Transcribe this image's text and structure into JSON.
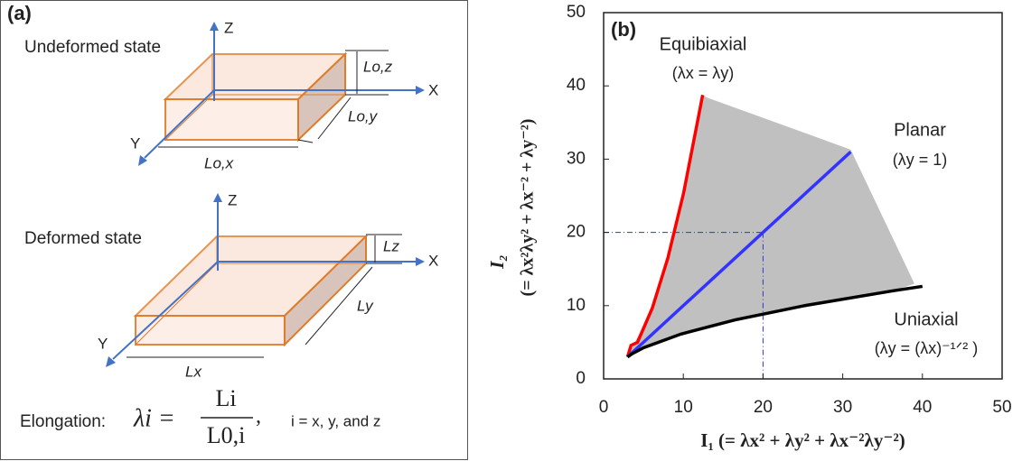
{
  "panel_a": {
    "panel_label": "(a)",
    "undeformed": {
      "title": "Undeformed state",
      "z": "Z",
      "x": "X",
      "y": "Y",
      "lz": "Lo,z",
      "ly": "Lo,y",
      "lx": "Lo,x"
    },
    "deformed": {
      "title": "Deformed state",
      "z": "Z",
      "x": "X",
      "y": "Y",
      "lz": "Lz",
      "ly": "Ly",
      "lx": "Lx"
    },
    "elongation_label": "Elongation:",
    "equation_lhs": "λi =",
    "numerator": "Li",
    "denominator": "L0,i",
    "separator": ",",
    "index_note": "i = x, y, and z"
  },
  "chart_data": {
    "type": "line",
    "panel_label": "(b)",
    "xlabel": "I₁ (= λx² + λy² + λx⁻²λy⁻²)",
    "ylabel_symbol": "I₂",
    "ylabel": "(= λx²λy² + λx⁻² + λy⁻²)",
    "xlim": [
      0,
      50
    ],
    "ylim": [
      0,
      50
    ],
    "xticks": [
      0,
      10,
      20,
      30,
      40,
      50
    ],
    "yticks": [
      0,
      10,
      20,
      30,
      40,
      50
    ],
    "series": [
      {
        "name": "Equibiaxial",
        "note": "(λx = λy)",
        "color": "#ff0000",
        "x": [
          3,
          3.44,
          4.25,
          6.11,
          8.06,
          10.04,
          12.43
        ],
        "values": [
          3,
          4.58,
          5,
          9.67,
          16.5,
          25.4,
          38.76
        ]
      },
      {
        "name": "Planar",
        "note": "(λy = 1)",
        "color": "#3333ff",
        "x": [
          3,
          31
        ],
        "values": [
          3,
          31
        ]
      },
      {
        "name": "Uniaxial",
        "note": "(λy = (λx)⁻¹ᐟ² )",
        "color": "#000000",
        "x": [
          3,
          3.58,
          5,
          9.67,
          16.5,
          25.4,
          36.33,
          40.0
        ],
        "values": [
          3,
          3.44,
          4.25,
          6.11,
          8.06,
          10.04,
          12.03,
          12.63
        ]
      }
    ],
    "region": {
      "color": "#c0c0c0",
      "x": [
        3,
        6.11,
        8.06,
        10.04,
        12.43,
        13,
        31,
        39,
        36.33,
        25.4,
        16.5,
        9.67,
        5
      ],
      "values": [
        3,
        9.67,
        16.5,
        25.4,
        38.76,
        38.4,
        31.3,
        13,
        12.03,
        10.04,
        8.06,
        6.11,
        4.25
      ]
    },
    "guides": {
      "color": "#3333cc",
      "x": 20,
      "y": 20
    }
  }
}
